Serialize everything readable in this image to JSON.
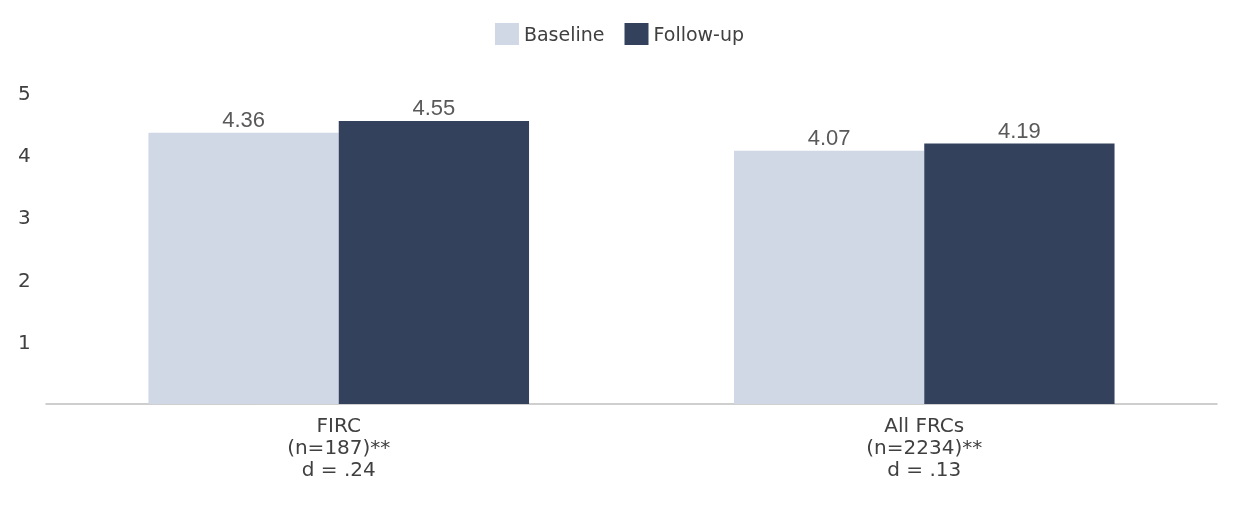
{
  "chart_data": {
    "type": "bar",
    "categories": [
      "FIRC\n(n=187)**\nd = .24",
      "All FRCs\n(n=2234)**\nd = .13"
    ],
    "series": [
      {
        "name": "Baseline",
        "color": "#d0d7e5",
        "values": [
          4.36,
          4.07
        ]
      },
      {
        "name": "Follow-up",
        "color": "#33415c",
        "values": [
          4.55,
          4.19
        ]
      }
    ],
    "ylim": [
      0,
      5
    ],
    "yticks": [
      1,
      2,
      3,
      4,
      5
    ],
    "data_labels": true,
    "grid": false,
    "legend": "top"
  }
}
